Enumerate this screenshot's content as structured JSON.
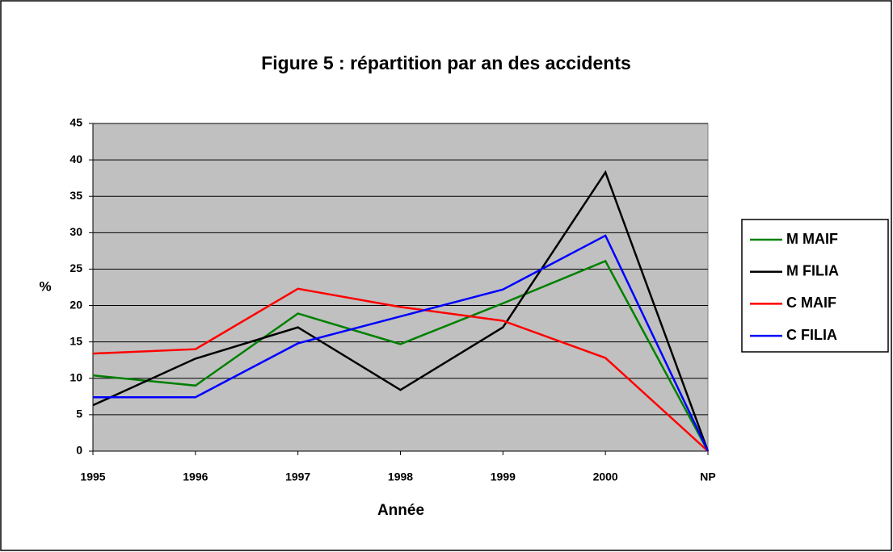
{
  "chart_data": {
    "type": "line",
    "title": "Figure 5 : répartition par an des accidents",
    "x_label": "Année",
    "y_label": "%",
    "categories": [
      "1995",
      "1996",
      "1997",
      "1998",
      "1999",
      "2000",
      "NP"
    ],
    "series": [
      {
        "name": "M MAIF",
        "color": "#008000",
        "values": [
          10.4,
          9.0,
          18.9,
          14.7,
          20.3,
          26.1,
          0
        ]
      },
      {
        "name": "M FILIA",
        "color": "#000000",
        "values": [
          6.3,
          12.7,
          17.0,
          8.4,
          17.0,
          38.3,
          0
        ]
      },
      {
        "name": "C MAIF",
        "color": "#ff0000",
        "values": [
          13.4,
          14.0,
          22.3,
          19.8,
          17.9,
          12.8,
          0
        ]
      },
      {
        "name": "C FILIA",
        "color": "#0000ff",
        "values": [
          7.4,
          7.4,
          14.8,
          18.5,
          22.2,
          29.6,
          0
        ]
      }
    ],
    "ylim": [
      0,
      45
    ],
    "yticks": [
      0,
      5,
      10,
      15,
      20,
      25,
      30,
      35,
      40,
      45
    ],
    "grid": true,
    "legend": "right"
  }
}
